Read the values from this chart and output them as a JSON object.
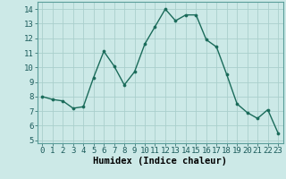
{
  "x": [
    0,
    1,
    2,
    3,
    4,
    5,
    6,
    7,
    8,
    9,
    10,
    11,
    12,
    13,
    14,
    15,
    16,
    17,
    18,
    19,
    20,
    21,
    22,
    23
  ],
  "y": [
    8.0,
    7.8,
    7.7,
    7.2,
    7.3,
    9.3,
    11.1,
    10.1,
    8.8,
    9.7,
    11.6,
    12.8,
    14.0,
    13.2,
    13.6,
    13.6,
    11.9,
    11.4,
    9.5,
    7.5,
    6.9,
    6.5,
    7.1,
    5.5
  ],
  "line_color": "#1a6b5a",
  "marker": "o",
  "marker_size": 2.2,
  "bg_color": "#cce9e7",
  "grid_color": "#aacfcc",
  "xlabel": "Humidex (Indice chaleur)",
  "xlabel_fontsize": 7.5,
  "ylim": [
    4.8,
    14.5
  ],
  "xlim": [
    -0.5,
    23.5
  ],
  "yticks": [
    5,
    6,
    7,
    8,
    9,
    10,
    11,
    12,
    13,
    14
  ],
  "xticks": [
    0,
    1,
    2,
    3,
    4,
    5,
    6,
    7,
    8,
    9,
    10,
    11,
    12,
    13,
    14,
    15,
    16,
    17,
    18,
    19,
    20,
    21,
    22,
    23
  ],
  "tick_fontsize": 6.5,
  "line_width": 1.0
}
